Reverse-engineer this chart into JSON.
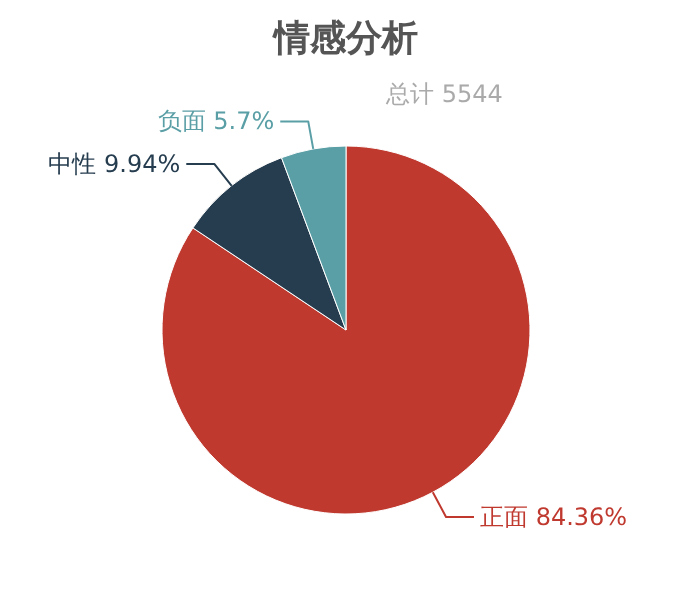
{
  "chart_data": {
    "type": "pie",
    "title": "情感分析",
    "subtitle": "总计 5544",
    "categories": [
      "正面",
      "中性",
      "负面"
    ],
    "values": [
      84.36,
      9.94,
      5.7
    ],
    "value_labels": [
      "84.36%",
      "9.94%",
      "5.7%"
    ],
    "colors": [
      "#c0392f",
      "#263d4f",
      "#5b9fa6"
    ]
  }
}
